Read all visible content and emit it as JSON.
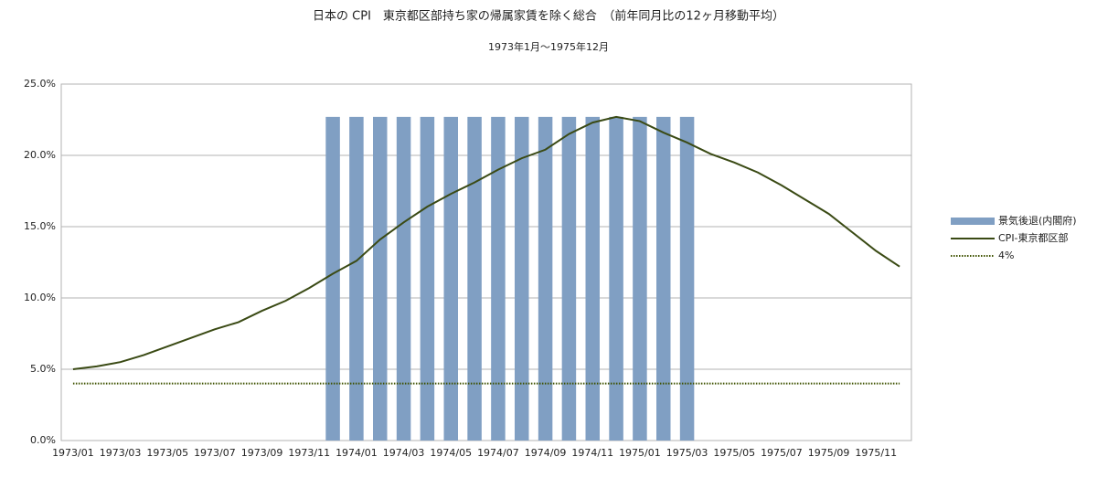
{
  "chart_data": {
    "type": "bar-line",
    "title": "日本の CPI　東京都区部持ち家の帰属家賃を除く総合　（前年同月比の12ヶ月移動平均）",
    "subtitle": "1973年1月～1975年12月",
    "categories": [
      "1973/01",
      null,
      "1973/03",
      null,
      "1973/05",
      null,
      "1973/07",
      null,
      "1973/09",
      null,
      "1973/11",
      null,
      "1974/01",
      null,
      "1974/03",
      null,
      "1974/05",
      null,
      "1974/07",
      null,
      "1974/09",
      null,
      "1974/11",
      null,
      "1975/01",
      null,
      "1975/03",
      null,
      "1975/05",
      null,
      "1975/07",
      null,
      "1975/09",
      null,
      "1975/11",
      null
    ],
    "series": [
      {
        "name": "景気後退(内閣府)",
        "kind": "bar",
        "color": "#809fc3",
        "values": [
          null,
          null,
          null,
          null,
          null,
          null,
          null,
          null,
          null,
          null,
          null,
          22.7,
          22.7,
          22.7,
          22.7,
          22.7,
          22.7,
          22.7,
          22.7,
          22.7,
          22.7,
          22.7,
          22.7,
          22.7,
          22.7,
          22.7,
          22.7,
          null,
          null,
          null,
          null,
          null,
          null,
          null,
          null,
          null
        ]
      },
      {
        "name": "CPI-東京都区部",
        "kind": "line",
        "color": "#3a4a14",
        "values": [
          5.0,
          5.2,
          5.5,
          6.0,
          6.6,
          7.2,
          7.8,
          8.3,
          9.1,
          9.8,
          10.7,
          11.7,
          12.6,
          14.1,
          15.3,
          16.4,
          17.3,
          18.1,
          19.0,
          19.8,
          20.4,
          21.5,
          22.3,
          22.7,
          22.4,
          21.6,
          20.9,
          20.1,
          19.5,
          18.8,
          17.9,
          16.9,
          15.9,
          14.6,
          13.3,
          12.2
        ]
      },
      {
        "name": "4%",
        "kind": "dotted",
        "color": "#3f5200",
        "values": [
          4,
          4,
          4,
          4,
          4,
          4,
          4,
          4,
          4,
          4,
          4,
          4,
          4,
          4,
          4,
          4,
          4,
          4,
          4,
          4,
          4,
          4,
          4,
          4,
          4,
          4,
          4,
          4,
          4,
          4,
          4,
          4,
          4,
          4,
          4,
          4
        ]
      }
    ],
    "ylim": [
      0,
      25
    ],
    "yticks": [
      {
        "value": 0,
        "label": "0.0%"
      },
      {
        "value": 5,
        "label": "5.0%"
      },
      {
        "value": 10,
        "label": "10.0%"
      },
      {
        "value": 15,
        "label": "15.0%"
      },
      {
        "value": 20,
        "label": "20.0%"
      },
      {
        "value": 25,
        "label": "25.0%"
      }
    ],
    "grid": true,
    "legend": "right"
  }
}
